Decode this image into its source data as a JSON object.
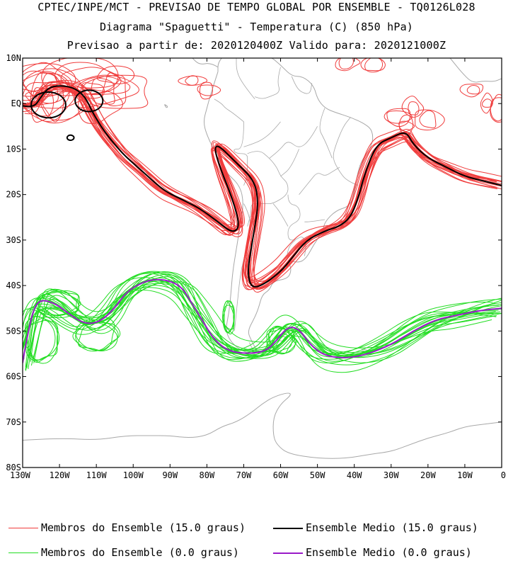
{
  "titles": {
    "line1": "CPTEC/INPE/MCT - PREVISAO DE TEMPO GLOBAL POR ENSEMBLE - TQ0126L028",
    "line2": "Diagrama \"Spaguetti\" - Temperatura (C) (850 hPa)",
    "line3": "Previsao a partir de: 2020120400Z  Valido para: 2020121000Z"
  },
  "axes": {
    "lat_labels": [
      "10N",
      "EQ",
      "10S",
      "20S",
      "30S",
      "40S",
      "50S",
      "60S",
      "70S",
      "80S"
    ],
    "lon_labels": [
      "130W",
      "120W",
      "110W",
      "100W",
      "90W",
      "80W",
      "70W",
      "60W",
      "50W",
      "40W",
      "30W",
      "20W",
      "10W",
      "0"
    ]
  },
  "legend": {
    "members_15": "Membros do Ensemble (15.0 graus)",
    "mean_15": "Ensemble Medio (15.0 graus)",
    "members_0": "Membros do Ensemble (0.0 graus)",
    "mean_0": "Ensemble Medio (0.0 graus)"
  },
  "colors": {
    "members_15": "#f03c3c",
    "mean_15": "#000000",
    "members_0": "#22dd22",
    "mean_0": "#9a1ac8",
    "coast": "#a8a8a8"
  },
  "map_data": {
    "extent": {
      "lon": [
        -130,
        0
      ],
      "lat": [
        -80,
        10
      ]
    },
    "mean_15_lonlat": [
      [
        -130,
        -0.5
      ],
      [
        -127,
        -1
      ],
      [
        -125,
        1.5
      ],
      [
        -123,
        3.5
      ],
      [
        -120,
        4
      ],
      [
        -116,
        3.5
      ],
      [
        -113,
        1.5
      ],
      [
        -111,
        -2
      ],
      [
        -108,
        -6
      ],
      [
        -103,
        -11
      ],
      [
        -98,
        -14.5
      ],
      [
        -92,
        -19
      ],
      [
        -87,
        -21
      ],
      [
        -82,
        -23
      ],
      [
        -77,
        -26
      ],
      [
        -73,
        -28.5
      ],
      [
        -71,
        -27
      ],
      [
        -73,
        -21
      ],
      [
        -76,
        -15
      ],
      [
        -78,
        -10
      ],
      [
        -77,
        -9
      ],
      [
        -72,
        -13
      ],
      [
        -67,
        -17
      ],
      [
        -66,
        -22
      ],
      [
        -67,
        -27
      ],
      [
        -68,
        -32
      ],
      [
        -69,
        -37
      ],
      [
        -68,
        -40.5
      ],
      [
        -65,
        -40
      ],
      [
        -60,
        -37
      ],
      [
        -57,
        -34
      ],
      [
        -53,
        -30
      ],
      [
        -48,
        -28
      ],
      [
        -44,
        -27
      ],
      [
        -41,
        -25
      ],
      [
        -39,
        -21
      ],
      [
        -37,
        -15
      ],
      [
        -34,
        -9
      ],
      [
        -30,
        -7.5
      ],
      [
        -26,
        -6
      ],
      [
        -24,
        -9
      ],
      [
        -20,
        -12
      ],
      [
        -15,
        -14
      ],
      [
        -10,
        -16
      ],
      [
        -5,
        -17
      ],
      [
        0,
        -18
      ]
    ],
    "mean_0_lonlat": [
      [
        -130,
        -57
      ],
      [
        -129,
        -52
      ],
      [
        -127,
        -45
      ],
      [
        -125,
        -43
      ],
      [
        -121,
        -44
      ],
      [
        -117,
        -46.5
      ],
      [
        -113,
        -48.5
      ],
      [
        -109,
        -48
      ],
      [
        -105,
        -45
      ],
      [
        -102,
        -41.5
      ],
      [
        -97,
        -39
      ],
      [
        -92,
        -38.5
      ],
      [
        -87,
        -40
      ],
      [
        -84,
        -44
      ],
      [
        -81,
        -48
      ],
      [
        -78,
        -52
      ],
      [
        -74,
        -54.5
      ],
      [
        -69,
        -55
      ],
      [
        -64,
        -54.5
      ],
      [
        -61,
        -52
      ],
      [
        -58,
        -49
      ],
      [
        -55,
        -49.5
      ],
      [
        -52,
        -53
      ],
      [
        -48,
        -55.5
      ],
      [
        -42,
        -56
      ],
      [
        -36,
        -55
      ],
      [
        -30,
        -53
      ],
      [
        -24,
        -50
      ],
      [
        -18,
        -47.5
      ],
      [
        -12,
        -46.5
      ],
      [
        -6,
        -45.5
      ],
      [
        0,
        -45
      ]
    ]
  }
}
